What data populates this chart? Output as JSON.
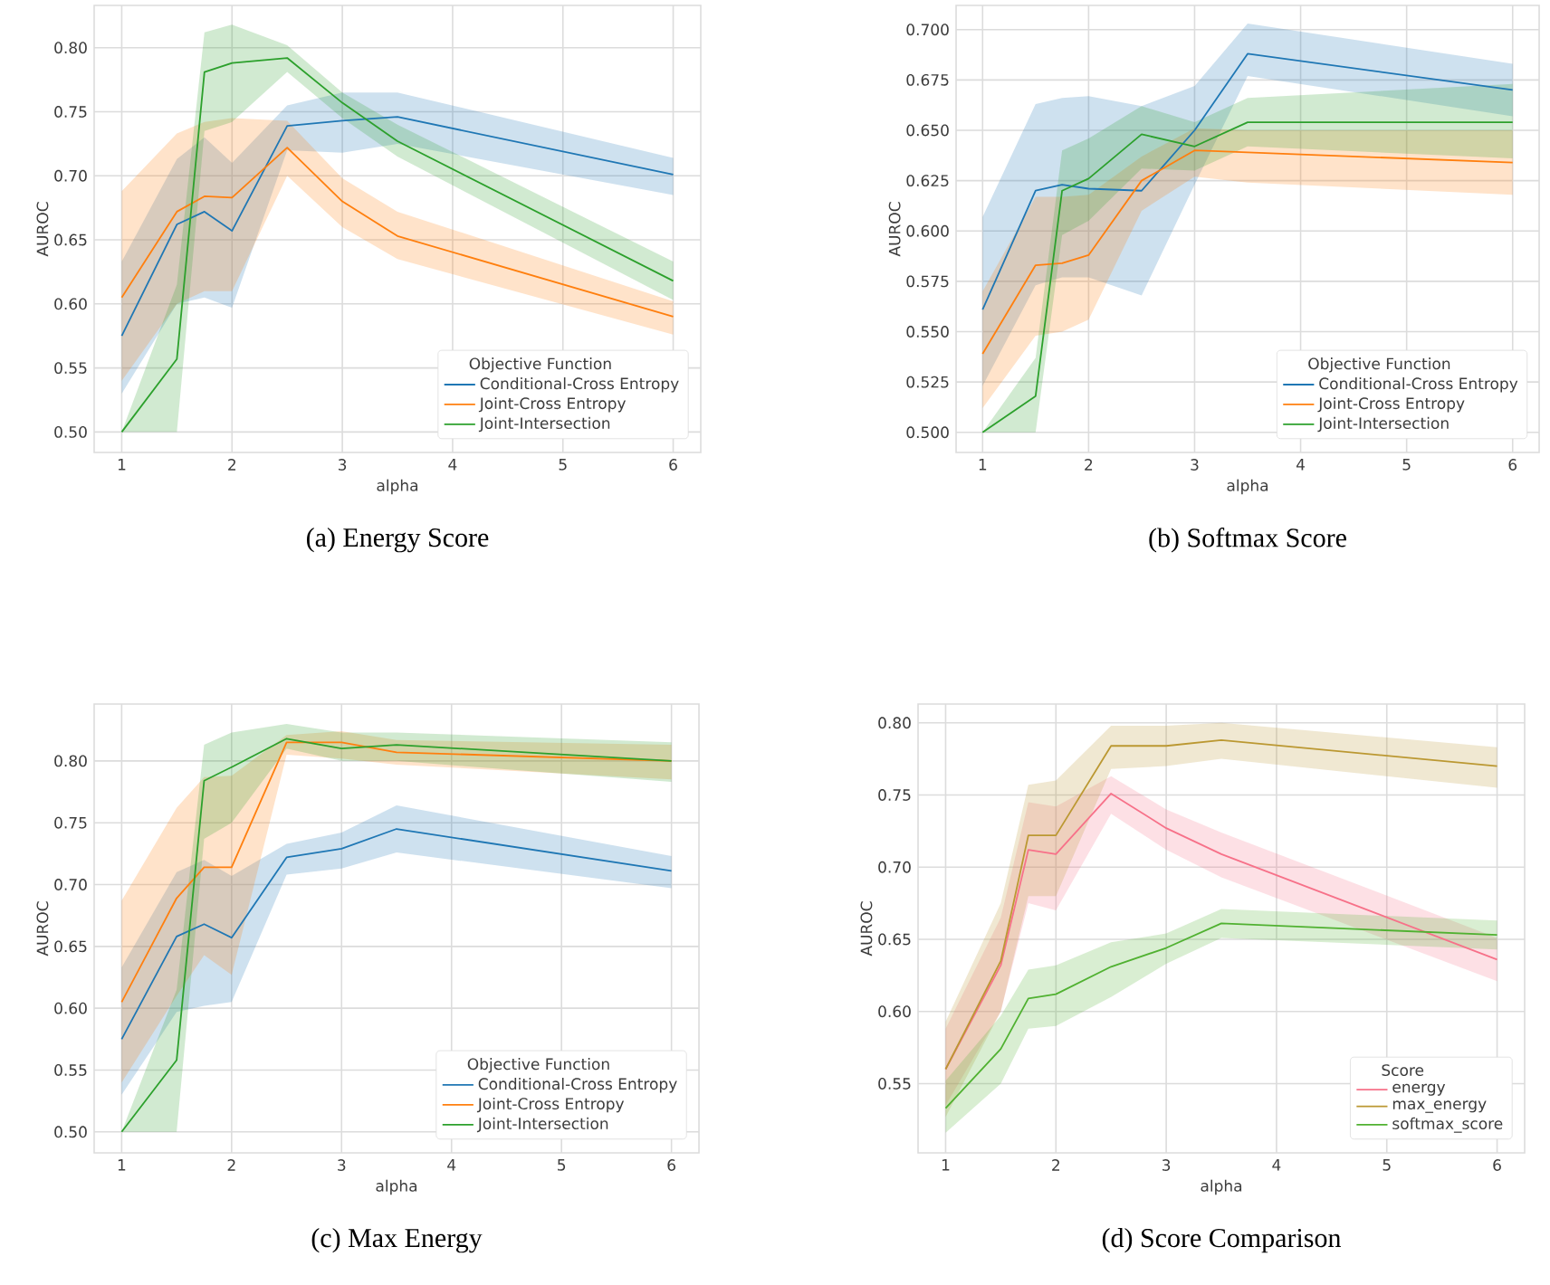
{
  "chart_data": [
    {
      "type": "line",
      "title": "(a) Energy Score",
      "xlabel": "alpha",
      "ylabel": "AUROC",
      "legend_title": "Objective Function",
      "legend": "bottom right",
      "grid": true,
      "x": [
        1,
        1.5,
        1.75,
        2,
        2.5,
        3,
        3.5,
        6
      ],
      "xlim": [
        0.75,
        6.25
      ],
      "ylim": [
        0.484,
        0.833
      ],
      "xticks": [
        1,
        2,
        3,
        4,
        5,
        6
      ],
      "yticks": [
        {
          "value": 0.5,
          "label": "0.50"
        },
        {
          "value": 0.55,
          "label": "0.55"
        },
        {
          "value": 0.6,
          "label": "0.60"
        },
        {
          "value": 0.65,
          "label": "0.65"
        },
        {
          "value": 0.7,
          "label": "0.70"
        },
        {
          "value": 0.75,
          "label": "0.75"
        },
        {
          "value": 0.8,
          "label": "0.80"
        }
      ],
      "series": [
        {
          "name": "Conditional-Cross Entropy",
          "color": "#1f77b4",
          "values": [
            0.575,
            0.662,
            0.672,
            0.657,
            0.739,
            0.743,
            0.746,
            0.701
          ],
          "lower": [
            0.53,
            0.6,
            0.605,
            0.597,
            0.72,
            0.718,
            0.725,
            0.685
          ],
          "upper": [
            0.633,
            0.713,
            0.73,
            0.71,
            0.755,
            0.765,
            0.765,
            0.714
          ]
        },
        {
          "name": "Joint-Cross Entropy",
          "color": "#ff7f0e",
          "values": [
            0.605,
            0.672,
            0.684,
            0.683,
            0.722,
            0.68,
            0.653,
            0.59
          ],
          "lower": [
            0.54,
            0.6,
            0.61,
            0.61,
            0.7,
            0.66,
            0.635,
            0.576
          ],
          "upper": [
            0.688,
            0.733,
            0.742,
            0.745,
            0.743,
            0.698,
            0.672,
            0.602
          ]
        },
        {
          "name": "Joint-Intersection",
          "color": "#2ca02c",
          "values": [
            0.5,
            0.557,
            0.781,
            0.788,
            0.792,
            0.757,
            0.727,
            0.618
          ],
          "lower": [
            0.5,
            0.5,
            0.735,
            0.742,
            0.781,
            0.745,
            0.715,
            0.603
          ],
          "upper": [
            0.5,
            0.615,
            0.812,
            0.818,
            0.802,
            0.765,
            0.74,
            0.633
          ]
        }
      ]
    },
    {
      "type": "line",
      "title": "(b) Softmax Score",
      "xlabel": "alpha",
      "ylabel": "AUROC",
      "legend_title": "Objective Function",
      "legend": "bottom right",
      "grid": true,
      "x": [
        1,
        1.5,
        1.75,
        2,
        2.5,
        3,
        3.5,
        6
      ],
      "xlim": [
        0.75,
        6.25
      ],
      "ylim": [
        0.49,
        0.712
      ],
      "xticks": [
        1,
        2,
        3,
        4,
        5,
        6
      ],
      "yticks": [
        {
          "value": 0.5,
          "label": "0.500"
        },
        {
          "value": 0.525,
          "label": "0.525"
        },
        {
          "value": 0.55,
          "label": "0.550"
        },
        {
          "value": 0.575,
          "label": "0.575"
        },
        {
          "value": 0.6,
          "label": "0.600"
        },
        {
          "value": 0.625,
          "label": "0.625"
        },
        {
          "value": 0.65,
          "label": "0.650"
        },
        {
          "value": 0.675,
          "label": "0.675"
        },
        {
          "value": 0.7,
          "label": "0.700"
        }
      ],
      "series": [
        {
          "name": "Conditional-Cross Entropy",
          "color": "#1f77b4",
          "values": [
            0.561,
            0.62,
            0.623,
            0.621,
            0.62,
            0.65,
            0.688,
            0.67
          ],
          "lower": [
            0.523,
            0.573,
            0.577,
            0.577,
            0.568,
            0.623,
            0.677,
            0.657
          ],
          "upper": [
            0.607,
            0.663,
            0.666,
            0.667,
            0.662,
            0.672,
            0.703,
            0.683
          ]
        },
        {
          "name": "Joint-Cross Entropy",
          "color": "#ff7f0e",
          "values": [
            0.539,
            0.583,
            0.584,
            0.588,
            0.625,
            0.64,
            0.639,
            0.634
          ],
          "lower": [
            0.512,
            0.548,
            0.55,
            0.556,
            0.61,
            0.627,
            0.624,
            0.618
          ],
          "upper": [
            0.57,
            0.617,
            0.617,
            0.618,
            0.637,
            0.651,
            0.65,
            0.65
          ]
        },
        {
          "name": "Joint-Intersection",
          "color": "#2ca02c",
          "values": [
            0.5,
            0.518,
            0.62,
            0.626,
            0.648,
            0.642,
            0.654,
            0.654
          ],
          "lower": [
            0.5,
            0.5,
            0.598,
            0.605,
            0.631,
            0.63,
            0.642,
            0.636
          ],
          "upper": [
            0.5,
            0.537,
            0.64,
            0.646,
            0.662,
            0.654,
            0.666,
            0.673
          ]
        }
      ]
    },
    {
      "type": "line",
      "title": "(c) Max Energy",
      "xlabel": "alpha",
      "ylabel": "AUROC",
      "legend_title": "Objective Function",
      "legend": "bottom right",
      "grid": true,
      "x": [
        1,
        1.5,
        1.75,
        2,
        2.5,
        3,
        3.5,
        6
      ],
      "xlim": [
        0.75,
        6.25
      ],
      "ylim": [
        0.483,
        0.846
      ],
      "xticks": [
        1,
        2,
        3,
        4,
        5,
        6
      ],
      "yticks": [
        {
          "value": 0.5,
          "label": "0.50"
        },
        {
          "value": 0.55,
          "label": "0.55"
        },
        {
          "value": 0.6,
          "label": "0.60"
        },
        {
          "value": 0.65,
          "label": "0.65"
        },
        {
          "value": 0.7,
          "label": "0.70"
        },
        {
          "value": 0.75,
          "label": "0.75"
        },
        {
          "value": 0.8,
          "label": "0.80"
        }
      ],
      "series": [
        {
          "name": "Conditional-Cross Entropy",
          "color": "#1f77b4",
          "values": [
            0.575,
            0.658,
            0.668,
            0.657,
            0.722,
            0.729,
            0.745,
            0.711
          ],
          "lower": [
            0.53,
            0.597,
            0.602,
            0.605,
            0.708,
            0.713,
            0.726,
            0.697
          ],
          "upper": [
            0.633,
            0.71,
            0.72,
            0.707,
            0.733,
            0.742,
            0.764,
            0.723
          ]
        },
        {
          "name": "Joint-Cross Entropy",
          "color": "#ff7f0e",
          "values": [
            0.605,
            0.689,
            0.714,
            0.714,
            0.815,
            0.815,
            0.807,
            0.8
          ],
          "lower": [
            0.54,
            0.61,
            0.643,
            0.627,
            0.805,
            0.802,
            0.797,
            0.785
          ],
          "upper": [
            0.687,
            0.762,
            0.787,
            0.788,
            0.821,
            0.824,
            0.817,
            0.813
          ]
        },
        {
          "name": "Joint-Intersection",
          "color": "#2ca02c",
          "values": [
            0.5,
            0.558,
            0.784,
            0.795,
            0.818,
            0.81,
            0.813,
            0.8
          ],
          "lower": [
            0.5,
            0.5,
            0.737,
            0.75,
            0.81,
            0.8,
            0.8,
            0.783
          ],
          "upper": [
            0.5,
            0.615,
            0.813,
            0.823,
            0.83,
            0.823,
            0.823,
            0.815
          ]
        }
      ]
    },
    {
      "type": "line",
      "title": "(d) Score Comparison",
      "xlabel": "alpha",
      "ylabel": "AUROC",
      "legend_title": "Score",
      "legend": "bottom right",
      "grid": true,
      "x": [
        1,
        1.5,
        1.75,
        2,
        2.5,
        3,
        3.5,
        6
      ],
      "xlim": [
        0.75,
        6.25
      ],
      "ylim": [
        0.502,
        0.813
      ],
      "xticks": [
        1,
        2,
        3,
        4,
        5,
        6
      ],
      "yticks": [
        {
          "value": 0.55,
          "label": "0.55"
        },
        {
          "value": 0.6,
          "label": "0.60"
        },
        {
          "value": 0.65,
          "label": "0.65"
        },
        {
          "value": 0.7,
          "label": "0.70"
        },
        {
          "value": 0.75,
          "label": "0.75"
        },
        {
          "value": 0.8,
          "label": "0.80"
        }
      ],
      "series": [
        {
          "name": "energy",
          "color": "#f77189",
          "values": [
            0.56,
            0.632,
            0.712,
            0.709,
            0.751,
            0.727,
            0.709,
            0.636
          ],
          "lower": [
            0.535,
            0.6,
            0.675,
            0.67,
            0.737,
            0.712,
            0.693,
            0.621
          ],
          "upper": [
            0.588,
            0.665,
            0.745,
            0.742,
            0.763,
            0.74,
            0.724,
            0.651
          ]
        },
        {
          "name": "max_energy",
          "color": "#bb9832",
          "values": [
            0.56,
            0.635,
            0.722,
            0.722,
            0.784,
            0.784,
            0.788,
            0.77
          ],
          "lower": [
            0.527,
            0.6,
            0.68,
            0.68,
            0.768,
            0.77,
            0.775,
            0.755
          ],
          "upper": [
            0.593,
            0.675,
            0.757,
            0.76,
            0.798,
            0.798,
            0.8,
            0.783
          ]
        },
        {
          "name": "softmax_score",
          "color": "#50b131",
          "values": [
            0.533,
            0.574,
            0.609,
            0.612,
            0.631,
            0.644,
            0.661,
            0.653
          ],
          "lower": [
            0.516,
            0.55,
            0.588,
            0.59,
            0.61,
            0.633,
            0.651,
            0.643
          ],
          "upper": [
            0.552,
            0.597,
            0.629,
            0.632,
            0.648,
            0.654,
            0.671,
            0.663
          ]
        }
      ]
    }
  ]
}
